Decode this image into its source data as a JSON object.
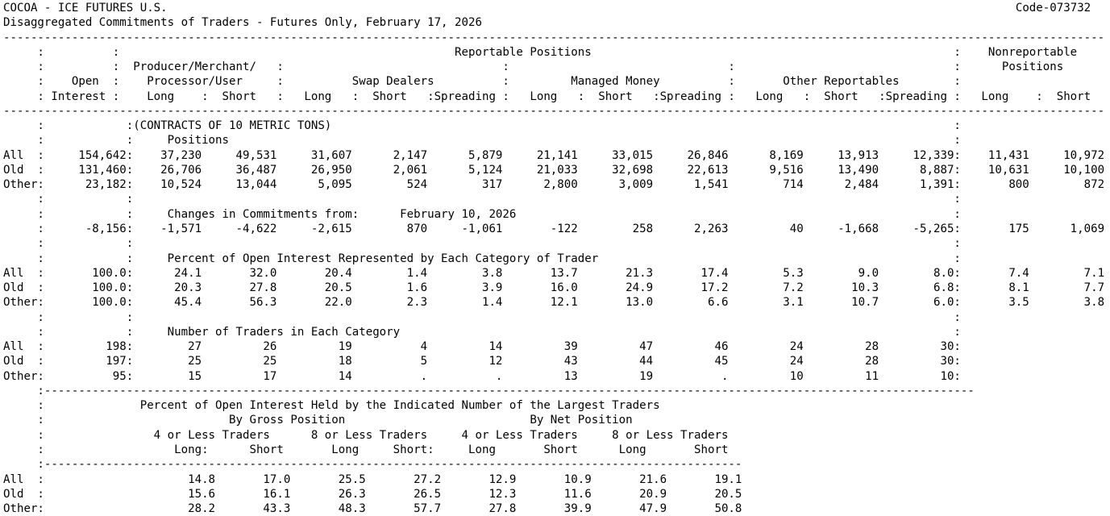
{
  "meta": {
    "market": "COCOA - ICE FUTURES U.S.",
    "code": "Code-073732",
    "report_title": "Disaggregated Commitments of Traders - Futures Only, February 17, 2026"
  },
  "header": {
    "reportable": "Reportable Positions",
    "nonreportable_line1": "Nonreportable",
    "nonreportable_line2": "Positions",
    "open_line1": "Open",
    "open_line2": "Interest",
    "pm_line1": "Producer/Merchant/",
    "pm_line2": "Processor/User",
    "swap": "Swap Dealers",
    "managed": "Managed Money",
    "other": "Other Reportables",
    "long": "Long",
    "short": "Short",
    "spreading": "Spreading"
  },
  "contracts_note": "(CONTRACTS OF 10 METRIC TONS)",
  "sections": [
    {
      "id": "positions",
      "caption": "Positions",
      "rows": [
        {
          "label": "All",
          "oi": "154,642",
          "values": [
            "37,230",
            "49,531",
            "31,607",
            "2,147",
            "5,879",
            "21,141",
            "33,015",
            "26,846",
            "8,169",
            "13,913",
            "12,339"
          ],
          "nr": [
            "11,431",
            "10,972"
          ]
        },
        {
          "label": "Old",
          "oi": "131,460",
          "values": [
            "26,706",
            "36,487",
            "26,950",
            "2,061",
            "5,124",
            "21,033",
            "32,698",
            "22,613",
            "9,516",
            "13,490",
            "8,887"
          ],
          "nr": [
            "10,631",
            "10,100"
          ]
        },
        {
          "label": "Other",
          "oi": "23,182",
          "values": [
            "10,524",
            "13,044",
            "5,095",
            "524",
            "317",
            "2,800",
            "3,009",
            "1,541",
            "714",
            "2,484",
            "1,391"
          ],
          "nr": [
            "800",
            "872"
          ]
        }
      ]
    },
    {
      "id": "changes",
      "caption": "Changes in Commitments from:",
      "caption_date": "February 10, 2026",
      "rows": [
        {
          "label": "",
          "oi": "-8,156",
          "values": [
            "-1,571",
            "-4,622",
            "-2,615",
            "870",
            "-1,061",
            "-122",
            "258",
            "2,263",
            "40",
            "-1,668",
            "-5,265"
          ],
          "nr": [
            "175",
            "1,069"
          ]
        }
      ]
    },
    {
      "id": "percent",
      "caption": "Percent of Open Interest Represented by Each Category of Trader",
      "rows": [
        {
          "label": "All",
          "oi": "100.0",
          "values": [
            "24.1",
            "32.0",
            "20.4",
            "1.4",
            "3.8",
            "13.7",
            "21.3",
            "17.4",
            "5.3",
            "9.0",
            "8.0"
          ],
          "nr": [
            "7.4",
            "7.1"
          ]
        },
        {
          "label": "Old",
          "oi": "100.0",
          "values": [
            "20.3",
            "27.8",
            "20.5",
            "1.6",
            "3.9",
            "16.0",
            "24.9",
            "17.2",
            "7.2",
            "10.3",
            "6.8"
          ],
          "nr": [
            "8.1",
            "7.7"
          ]
        },
        {
          "label": "Other",
          "oi": "100.0",
          "values": [
            "45.4",
            "56.3",
            "22.0",
            "2.3",
            "1.4",
            "12.1",
            "13.0",
            "6.6",
            "3.1",
            "10.7",
            "6.0"
          ],
          "nr": [
            "3.5",
            "3.8"
          ]
        }
      ]
    },
    {
      "id": "traders",
      "caption": "Number of Traders in Each Category",
      "rows": [
        {
          "label": "All",
          "oi": "198",
          "values": [
            "27",
            "26",
            "19",
            "4",
            "14",
            "39",
            "47",
            "46",
            "24",
            "28",
            "30"
          ]
        },
        {
          "label": "Old",
          "oi": "197",
          "values": [
            "25",
            "25",
            "18",
            "5",
            "12",
            "43",
            "44",
            "45",
            "24",
            "28",
            "30"
          ]
        },
        {
          "label": "Other",
          "oi": "95",
          "values": [
            "15",
            "17",
            "14",
            ".",
            ".",
            "13",
            "19",
            ".",
            "10",
            "11",
            "10"
          ]
        }
      ]
    }
  ],
  "concentration": {
    "caption": "Percent of Open Interest Held by the Indicated Number of the Largest Traders",
    "by_gross": "By Gross Position",
    "by_net": "By Net Position",
    "group_headers": [
      "4 or Less Traders",
      "8 or Less Traders",
      "4 or Less Traders",
      "8 or Less Traders"
    ],
    "col_headers": [
      "Long:",
      "Short",
      "Long",
      "Short:",
      "Long",
      "Short",
      "Long",
      "Short"
    ],
    "rows": [
      {
        "label": "All",
        "values": [
          "14.8",
          "17.0",
          "25.5",
          "27.2",
          "12.9",
          "10.9",
          "21.6",
          "19.1"
        ]
      },
      {
        "label": "Old",
        "values": [
          "15.6",
          "16.1",
          "26.3",
          "26.5",
          "12.3",
          "11.6",
          "20.9",
          "20.5"
        ]
      },
      {
        "label": "Other",
        "values": [
          "28.2",
          "43.3",
          "48.3",
          "57.7",
          "27.8",
          "39.9",
          "47.9",
          "50.8"
        ]
      }
    ]
  }
}
